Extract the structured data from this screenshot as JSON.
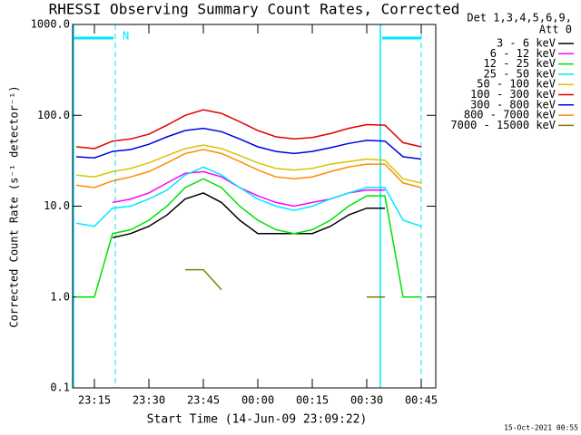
{
  "chart_data": {
    "type": "line",
    "title": "RHESSI Observing Summary Count Rates, Corrected",
    "x_label": "Start Time (14-Jun-09 23:09:22)",
    "y_label": "Corrected Count Rate (s⁻¹ detector⁻¹)",
    "legend_header": [
      "Det 1,3,4,5,6,9,",
      "Att 0"
    ],
    "annotation": "N",
    "footer": "15-Oct-2021 00:55",
    "log_y": true,
    "x": [
      "23:10",
      "23:15",
      "23:20",
      "23:25",
      "23:30",
      "23:35",
      "23:40",
      "23:45",
      "23:50",
      "23:55",
      "00:00",
      "00:05",
      "00:10",
      "00:15",
      "00:20",
      "00:25",
      "00:30",
      "00:35",
      "00:40",
      "00:45"
    ],
    "xlim": [
      "23:09",
      "00:49"
    ],
    "xticks": [
      "23:15",
      "23:30",
      "23:45",
      "00:00",
      "00:15",
      "00:30",
      "00:45"
    ],
    "ylim": [
      0.1,
      1000
    ],
    "yticks": [
      {
        "value": 0.1,
        "label": "0.1"
      },
      {
        "value": 1,
        "label": "1.0"
      },
      {
        "value": 10,
        "label": "10.0"
      },
      {
        "value": 100,
        "label": "100.0"
      },
      {
        "value": 1000,
        "label": "1000.0"
      }
    ],
    "series": [
      {
        "name": "3 - 6 keV",
        "color": "#000000",
        "values": [
          null,
          null,
          4.5,
          5,
          6,
          8,
          12,
          14,
          11,
          7,
          5,
          5,
          5,
          5,
          6,
          8,
          9.5,
          9.5,
          null,
          null
        ]
      },
      {
        "name": "6 - 12 keV",
        "color": "#ff00ff",
        "values": [
          null,
          null,
          11,
          12,
          14,
          18,
          23,
          24,
          21,
          16,
          13,
          11,
          10,
          11,
          12,
          14,
          15,
          15,
          null,
          null
        ]
      },
      {
        "name": "12 - 25 keV",
        "color": "#00e000",
        "values": [
          1,
          1,
          5,
          5.5,
          7,
          10,
          16,
          20,
          16,
          10,
          7,
          5.5,
          5,
          5.5,
          7,
          10,
          13,
          13,
          1,
          1
        ]
      },
      {
        "name": "25 - 50 keV",
        "color": "#00e8ff",
        "values": [
          6.5,
          6,
          9.5,
          10,
          12,
          15,
          22,
          27,
          22,
          16,
          12,
          10,
          9,
          10,
          12,
          14,
          16,
          16,
          7,
          6
        ]
      },
      {
        "name": "50 - 100 keV",
        "color": "#d8c400",
        "values": [
          22,
          21,
          24,
          26,
          30,
          36,
          43,
          47,
          43,
          36,
          30,
          26,
          25,
          26,
          29,
          31,
          33,
          32,
          20,
          18
        ]
      },
      {
        "name": "100 - 300 keV",
        "color": "#e00000",
        "values": [
          45,
          43,
          52,
          55,
          62,
          78,
          100,
          115,
          105,
          85,
          68,
          58,
          55,
          57,
          63,
          72,
          79,
          78,
          50,
          45
        ]
      },
      {
        "name": "300 - 800 keV",
        "color": "#0000e0",
        "values": [
          35,
          34,
          40,
          42,
          48,
          58,
          68,
          72,
          66,
          55,
          45,
          40,
          38,
          40,
          44,
          49,
          53,
          52,
          35,
          33
        ]
      },
      {
        "name": "800 - 7000 keV",
        "color": "#ff8c00",
        "values": [
          17,
          16,
          19,
          21,
          24,
          30,
          38,
          42,
          38,
          31,
          25,
          21,
          20,
          21,
          24,
          27,
          29,
          29,
          18,
          16
        ]
      },
      {
        "name": "7000 - 15000 keV",
        "color": "#808000",
        "values": [
          null,
          null,
          null,
          null,
          null,
          null,
          2,
          2,
          1.2,
          null,
          null,
          null,
          null,
          null,
          null,
          null,
          1,
          1,
          null,
          null
        ]
      }
    ]
  }
}
